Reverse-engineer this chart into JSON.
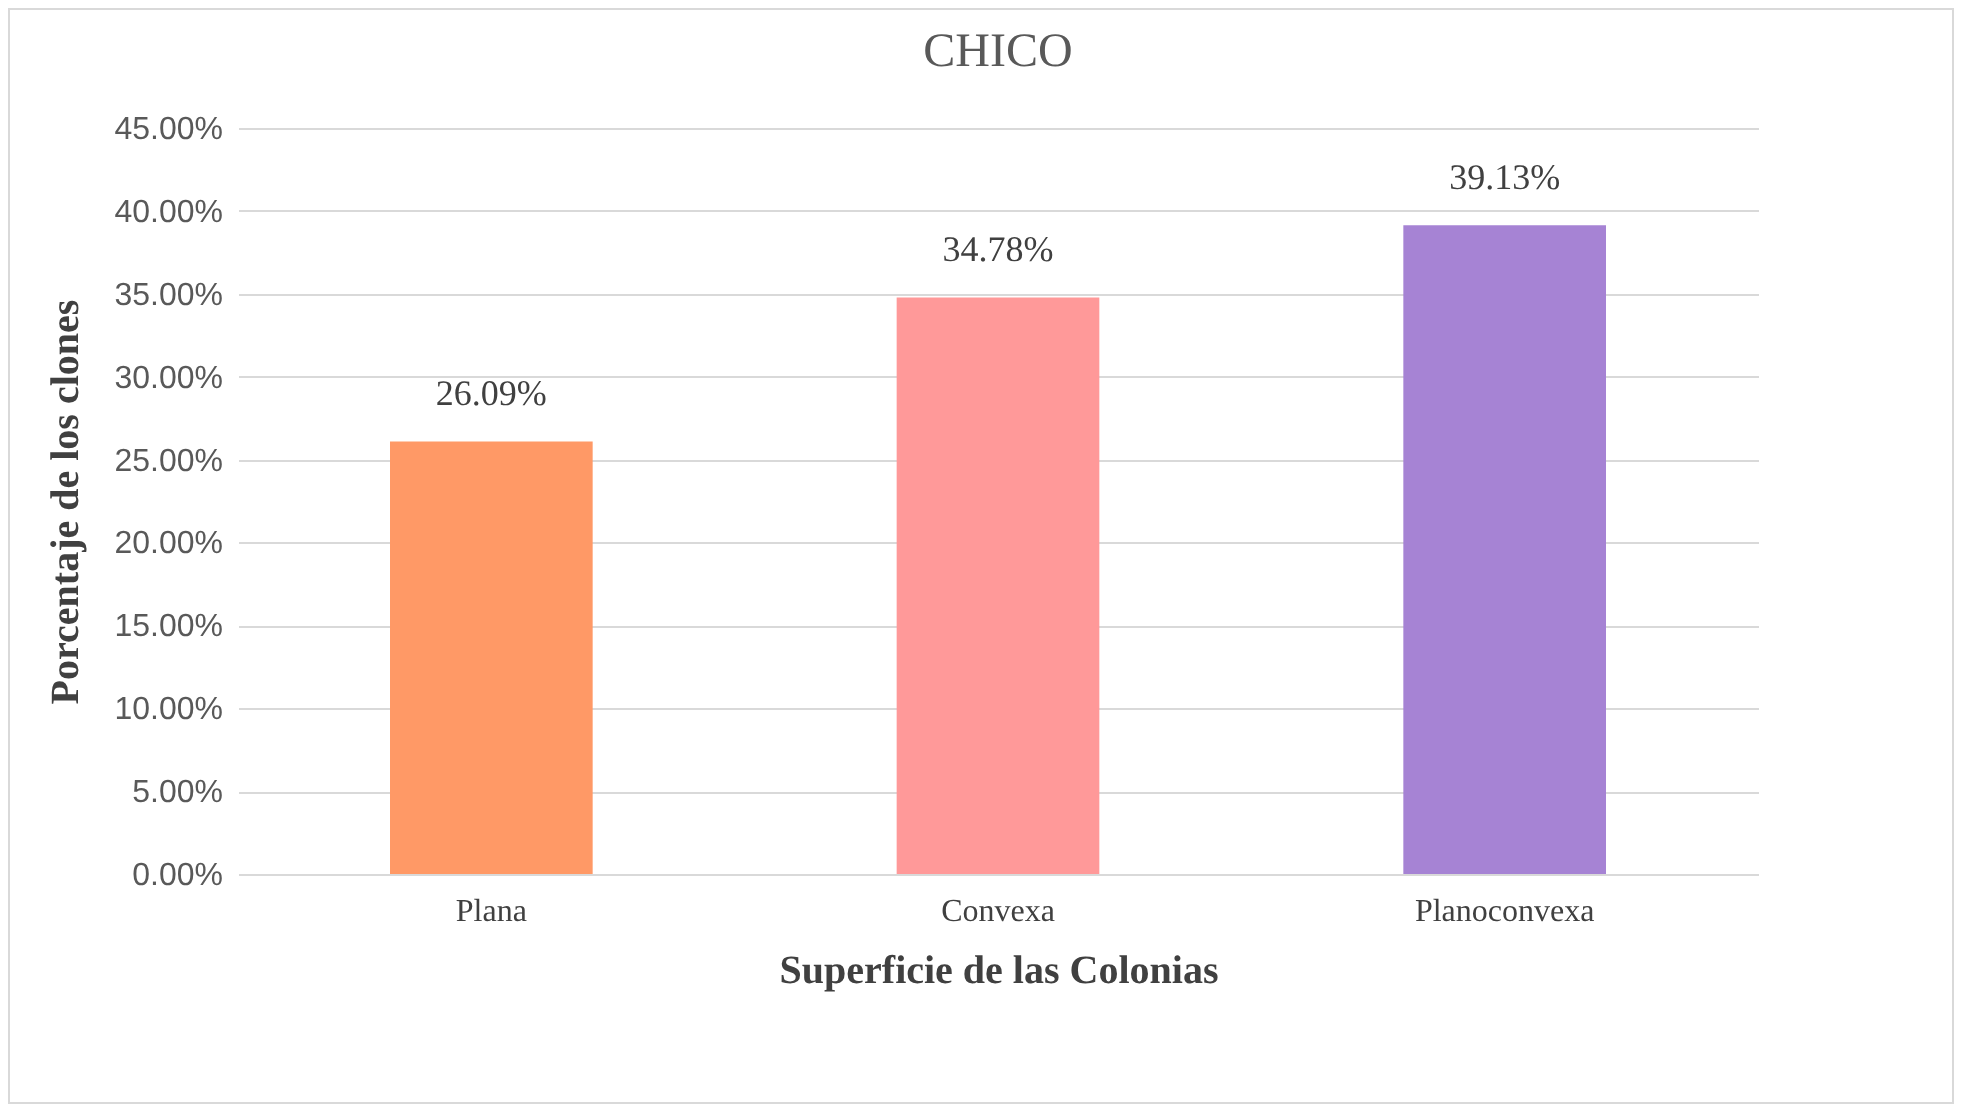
{
  "chart_data": {
    "type": "bar",
    "title": "CHICO",
    "xlabel": "Superficie de las Colonias",
    "ylabel": "Porcentaje de los clones",
    "categories": [
      "Plana",
      "Convexa",
      "Planoconvexa"
    ],
    "values": [
      26.09,
      34.78,
      39.13
    ],
    "colors": [
      "#ff9966",
      "#ff9999",
      "#a683d4"
    ],
    "value_labels": [
      "26.09%",
      "34.78%",
      "39.13%"
    ],
    "ylim": [
      0,
      45
    ],
    "yticks": [
      {
        "value": 0,
        "label": "0.00%"
      },
      {
        "value": 5,
        "label": "5.00%"
      },
      {
        "value": 10,
        "label": "10.00%"
      },
      {
        "value": 15,
        "label": "15.00%"
      },
      {
        "value": 20,
        "label": "20.00%"
      },
      {
        "value": 25,
        "label": "25.00%"
      },
      {
        "value": 30,
        "label": "30.00%"
      },
      {
        "value": 35,
        "label": "35.00%"
      },
      {
        "value": 40,
        "label": "40.00%"
      },
      {
        "value": 45,
        "label": "45.00%"
      }
    ],
    "grid": "y",
    "legend": false
  }
}
